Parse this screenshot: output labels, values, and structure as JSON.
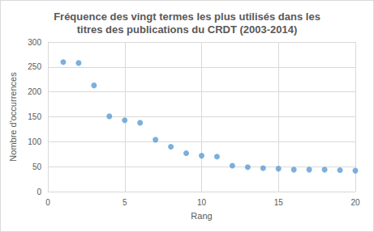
{
  "chart_data": {
    "type": "scatter",
    "title": "Fréquence des vingt termes les plus utilisés dans les\ntitres des publications du CRDT (2003-2014)",
    "x_label": "Rang",
    "y_label": "Nombre d'occurrences",
    "x": [
      1,
      2,
      3,
      4,
      5,
      6,
      7,
      8,
      9,
      10,
      11,
      12,
      13,
      14,
      15,
      16,
      17,
      18,
      19,
      20
    ],
    "values": [
      260,
      258,
      213,
      151,
      143,
      138,
      104,
      90,
      77,
      72,
      70,
      52,
      49,
      47,
      46,
      44,
      44,
      44,
      43,
      42
    ],
    "color": "#5b9bd5",
    "marker": "circle",
    "xlim": [
      0,
      20
    ],
    "xticks": [
      0,
      5,
      10,
      15,
      20
    ],
    "ylim": [
      0,
      300
    ],
    "yticks": [
      0,
      50,
      100,
      150,
      200,
      250,
      300
    ],
    "grid": true
  }
}
